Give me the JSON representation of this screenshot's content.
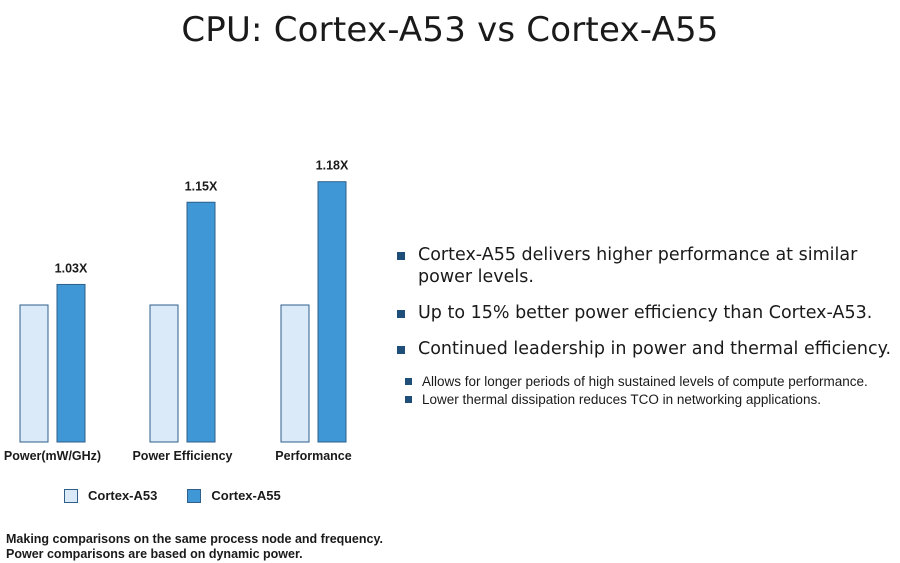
{
  "title": "CPU: Cortex-A53 vs Cortex-A55",
  "chart_data": {
    "type": "bar",
    "categories": [
      "Power(mW/GHz)",
      "Power Efficiency",
      "Performance"
    ],
    "series": [
      {
        "name": "Cortex-A53",
        "values": [
          1.0,
          1.0,
          1.0
        ],
        "color": "#dbeaf8"
      },
      {
        "name": "Cortex-A55",
        "values": [
          1.03,
          1.15,
          1.18
        ],
        "color": "#3f97d6"
      }
    ],
    "data_labels": [
      "1.03X",
      "1.15X",
      "1.18X"
    ],
    "ylim": [
      0.8,
      1.2
    ],
    "grid": false,
    "legend_position": "bottom"
  },
  "legend": [
    {
      "label": "Cortex-A53",
      "color": "#dbeaf8"
    },
    {
      "label": "Cortex-A55",
      "color": "#3f97d6"
    }
  ],
  "footnote": {
    "line1": "Making comparisons on the same process node and frequency.",
    "line2": "Power comparisons are based on dynamic power."
  },
  "bullets": [
    "Cortex-A55 delivers higher performance at similar power levels.",
    "Up to 15% better power efficiency than Cortex-A53.",
    "Continued leadership in power and thermal efficiency."
  ],
  "subbullets": [
    "Allows for longer periods of high sustained levels of compute performance.",
    "Lower thermal dissipation reduces TCO in networking applications."
  ],
  "colors": {
    "bullet_marker": "#1f4e79",
    "bar_outline": "#2f5f8a"
  }
}
